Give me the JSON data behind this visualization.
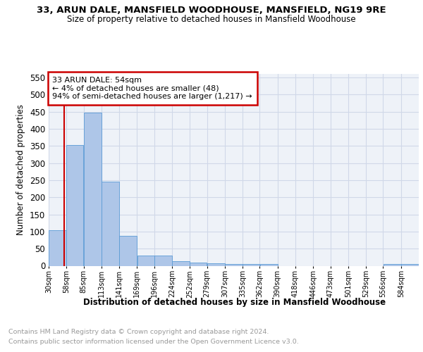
{
  "title1": "33, ARUN DALE, MANSFIELD WOODHOUSE, MANSFIELD, NG19 9RE",
  "title2": "Size of property relative to detached houses in Mansfield Woodhouse",
  "xlabel": "Distribution of detached houses by size in Mansfield Woodhouse",
  "ylabel": "Number of detached properties",
  "footer1": "Contains HM Land Registry data © Crown copyright and database right 2024.",
  "footer2": "Contains public sector information licensed under the Open Government Licence v3.0.",
  "annotation_line1": "33 ARUN DALE: 54sqm",
  "annotation_line2": "← 4% of detached houses are smaller (48)",
  "annotation_line3": "94% of semi-detached houses are larger (1,217) →",
  "property_size": 54,
  "bar_edges": [
    30,
    58,
    85,
    113,
    141,
    169,
    196,
    224,
    252,
    279,
    307,
    335,
    362,
    390,
    418,
    446,
    473,
    501,
    529,
    556,
    584
  ],
  "bar_heights": [
    103,
    353,
    448,
    246,
    88,
    30,
    30,
    13,
    9,
    7,
    6,
    5,
    6,
    0,
    0,
    0,
    0,
    0,
    0,
    5,
    5
  ],
  "bar_color": "#aec6e8",
  "bar_edge_color": "#5b9bd5",
  "vline_color": "#cc0000",
  "vline_x": 54,
  "annotation_box_edge_color": "#cc0000",
  "grid_color": "#d0d8e8",
  "bg_color": "#eef2f8",
  "ylim": [
    0,
    560
  ],
  "yticks": [
    0,
    50,
    100,
    150,
    200,
    250,
    300,
    350,
    400,
    450,
    500,
    550
  ]
}
